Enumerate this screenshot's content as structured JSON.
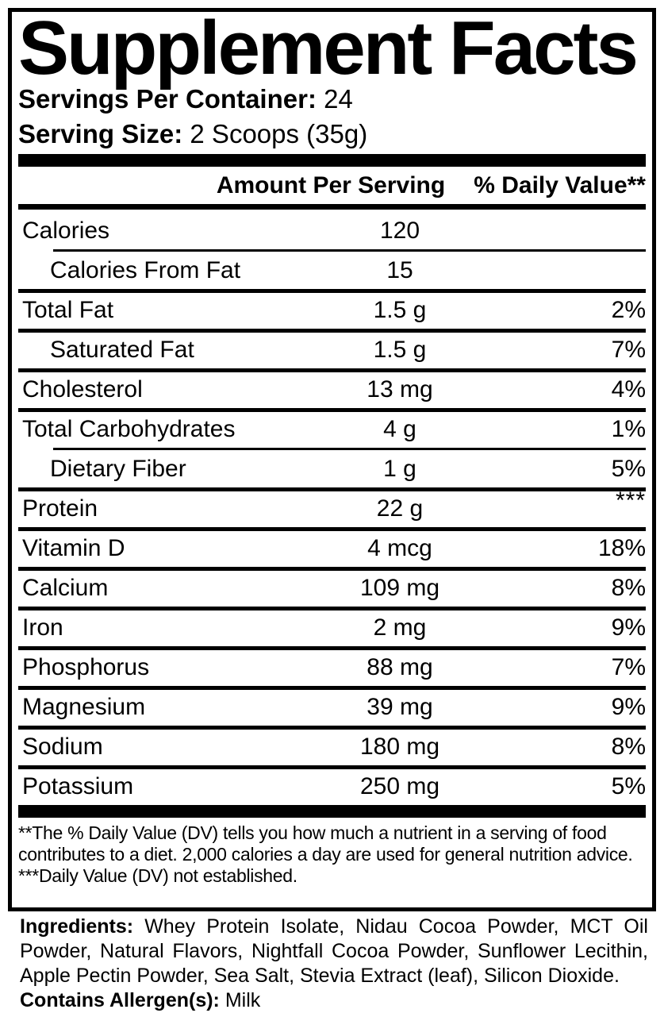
{
  "title": "Supplement Facts",
  "servings_per_container": {
    "label": "Servings Per Container:",
    "value": "24"
  },
  "serving_size": {
    "label": "Serving Size:",
    "value": "2 Scoops (35g)"
  },
  "table": {
    "amount_header": "Amount Per Serving",
    "dv_header": "% Daily Value**",
    "rows": [
      {
        "name": "Calories",
        "amount": "120",
        "dv": ""
      },
      {
        "name": "Calories From Fat",
        "amount": "15",
        "dv": ""
      },
      {
        "name": "Total Fat",
        "amount": "1.5 g",
        "dv": "2%"
      },
      {
        "name": "Saturated Fat",
        "amount": "1.5 g",
        "dv": "7%"
      },
      {
        "name": "Cholesterol",
        "amount": "13 mg",
        "dv": "4%"
      },
      {
        "name": "Total Carbohydrates",
        "amount": "4 g",
        "dv": "1%"
      },
      {
        "name": "Dietary Fiber",
        "amount": "1 g",
        "dv": "5%"
      },
      {
        "name": "Protein",
        "amount": "22 g",
        "dv": "***"
      },
      {
        "name": "Vitamin D",
        "amount": "4 mcg",
        "dv": "18%"
      },
      {
        "name": "Calcium",
        "amount": "109 mg",
        "dv": "8%"
      },
      {
        "name": "Iron",
        "amount": "2 mg",
        "dv": "9%"
      },
      {
        "name": "Phosphorus",
        "amount": "88 mg",
        "dv": "7%"
      },
      {
        "name": "Magnesium",
        "amount": "39 mg",
        "dv": "9%"
      },
      {
        "name": "Sodium",
        "amount": "180 mg",
        "dv": "8%"
      },
      {
        "name": "Potassium",
        "amount": "250 mg",
        "dv": "5%"
      }
    ]
  },
  "footnotes": {
    "daily_value_note": "**The % Daily Value (DV) tells you how much a nutrient in a serving of food contributes to a diet. 2,000 calories a day are used for general nutrition advice.",
    "not_established_note": "***Daily Value (DV) not established."
  },
  "ingredients": {
    "label": "Ingredients:",
    "text": " Whey Protein Isolate, Nidau Cocoa Powder, MCT Oil Powder, Natural Flavors, Nightfall Cocoa Powder, Sunflower Lecithin, Apple Pectin Powder, Sea Salt, Stevia Extract (leaf), Silicon Dioxide."
  },
  "allergens": {
    "label": "Contains Allergen(s):",
    "value": " Milk"
  },
  "colors": {
    "ink": "#000000",
    "background": "#ffffff"
  }
}
